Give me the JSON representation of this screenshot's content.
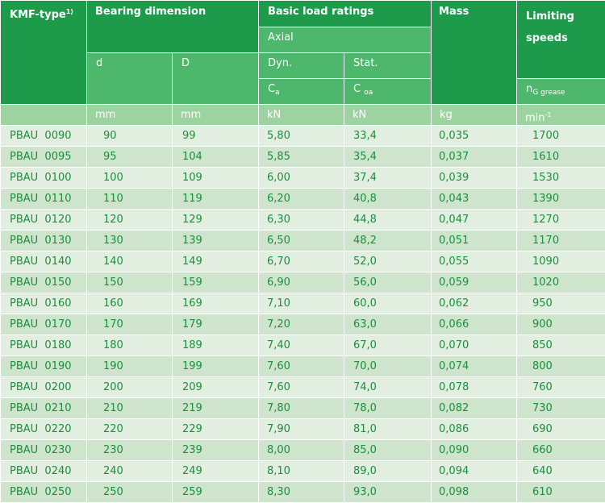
{
  "header": {
    "type_label": "KMF-type",
    "type_footnote": "1)",
    "bearing_dimension": "Bearing dimension",
    "basic_load_ratings": "Basic load ratings",
    "axial": "Axial",
    "mass": "Mass",
    "limiting_line1": "Limiting",
    "limiting_line2": "speeds",
    "d": "d",
    "D": "D",
    "dyn": "Dyn.",
    "stat": "Stat.",
    "ca_main": "C",
    "ca_sub": "a",
    "coa_main": "C",
    "coa_sub": "oa",
    "ng_main": "n",
    "ng_sub": "G grease"
  },
  "units": {
    "d": "mm",
    "D": "mm",
    "dyn": "kN",
    "stat": "kN",
    "mass": "kg",
    "speed_main": "min",
    "speed_sup": "-1"
  },
  "rows": [
    [
      "PBAU  0090",
      "90",
      "99",
      "5,80",
      "33,4",
      "0,035",
      "1700"
    ],
    [
      "PBAU  0095",
      "95",
      "104",
      "5,85",
      "35,4",
      "0,037",
      "1610"
    ],
    [
      "PBAU  0100",
      "100",
      "109",
      "6,00",
      "37,4",
      "0,039",
      "1530"
    ],
    [
      "PBAU  0110",
      "110",
      "119",
      "6,20",
      "40,8",
      "0,043",
      "1390"
    ],
    [
      "PBAU  0120",
      "120",
      "129",
      "6,30",
      "44,8",
      "0,047",
      "1270"
    ],
    [
      "PBAU  0130",
      "130",
      "139",
      "6,50",
      "48,2",
      "0,051",
      "1170"
    ],
    [
      "PBAU  0140",
      "140",
      "149",
      "6,70",
      "52,0",
      "0,055",
      "1090"
    ],
    [
      "PBAU  0150",
      "150",
      "159",
      "6,90",
      "56,0",
      "0,059",
      "1020"
    ],
    [
      "PBAU  0160",
      "160",
      "169",
      "7,10",
      "60,0",
      "0,062",
      "950"
    ],
    [
      "PBAU  0170",
      "170",
      "179",
      "7,20",
      "63,0",
      "0,066",
      "900"
    ],
    [
      "PBAU  0180",
      "180",
      "189",
      "7,40",
      "67,0",
      "0,070",
      "850"
    ],
    [
      "PBAU  0190",
      "190",
      "199",
      "7,60",
      "70,0",
      "0,074",
      "800"
    ],
    [
      "PBAU  0200",
      "200",
      "209",
      "7,60",
      "74,0",
      "0,078",
      "760"
    ],
    [
      "PBAU  0210",
      "210",
      "219",
      "7,80",
      "78,0",
      "0,082",
      "730"
    ],
    [
      "PBAU  0220",
      "220",
      "229",
      "7,90",
      "81,0",
      "0,086",
      "690"
    ],
    [
      "PBAU  0230",
      "230",
      "239",
      "8,00",
      "85,0",
      "0,090",
      "660"
    ],
    [
      "PBAU  0240",
      "240",
      "249",
      "8,10",
      "89,0",
      "0,094",
      "640"
    ],
    [
      "PBAU  0250",
      "250",
      "259",
      "8,30",
      "93,0",
      "0,098",
      "610"
    ]
  ],
  "colors": {
    "header_dark": "#1e9a4b",
    "header_mid": "#4db76b",
    "units_row": "#9cd39f",
    "row_light": "#e2eee0",
    "row_dark": "#cfe4cc",
    "text_green": "#1a8f3c"
  }
}
